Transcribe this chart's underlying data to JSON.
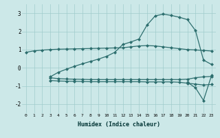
{
  "xlabel": "Humidex (Indice chaleur)",
  "x_values": [
    0,
    1,
    2,
    3,
    4,
    5,
    6,
    7,
    8,
    9,
    10,
    11,
    12,
    13,
    14,
    15,
    16,
    17,
    18,
    19,
    20,
    21,
    22,
    23
  ],
  "line1": [
    0.85,
    0.93,
    0.97,
    1.0,
    1.02,
    1.03,
    1.04,
    1.05,
    1.06,
    1.07,
    1.08,
    1.09,
    1.1,
    1.15,
    1.2,
    1.22,
    1.2,
    1.15,
    1.1,
    1.05,
    1.0,
    0.98,
    0.95,
    0.92
  ],
  "line2": [
    null,
    null,
    null,
    -0.55,
    -0.6,
    -0.62,
    -0.63,
    -0.64,
    -0.65,
    -0.65,
    -0.65,
    -0.65,
    -0.65,
    -0.65,
    -0.65,
    -0.65,
    -0.65,
    -0.65,
    -0.65,
    -0.65,
    -0.63,
    -0.55,
    -0.5,
    -0.48
  ],
  "line3": [
    null,
    null,
    null,
    -0.7,
    -0.73,
    -0.74,
    -0.75,
    -0.76,
    -0.77,
    -0.77,
    -0.77,
    -0.77,
    -0.77,
    -0.77,
    -0.77,
    -0.78,
    -0.78,
    -0.78,
    -0.78,
    -0.8,
    -0.85,
    -0.9,
    -0.95,
    -0.92
  ],
  "line4": [
    null,
    null,
    null,
    -0.5,
    -0.25,
    -0.08,
    0.08,
    0.22,
    0.35,
    0.48,
    0.63,
    0.85,
    1.28,
    1.42,
    1.58,
    2.35,
    2.85,
    2.95,
    2.88,
    2.78,
    2.65,
    2.05,
    0.42,
    0.18
  ],
  "line5": [
    null,
    null,
    null,
    null,
    null,
    null,
    null,
    null,
    null,
    null,
    null,
    null,
    null,
    null,
    null,
    null,
    null,
    null,
    null,
    null,
    -0.8,
    -1.1,
    -1.8,
    -0.42
  ],
  "color": "#2d6e6e",
  "bg_color": "#cce8e8",
  "grid_color": "#a0cccc",
  "ylim": [
    -2.5,
    3.5
  ],
  "yticks": [
    -2,
    -1,
    0,
    1,
    2,
    3
  ]
}
